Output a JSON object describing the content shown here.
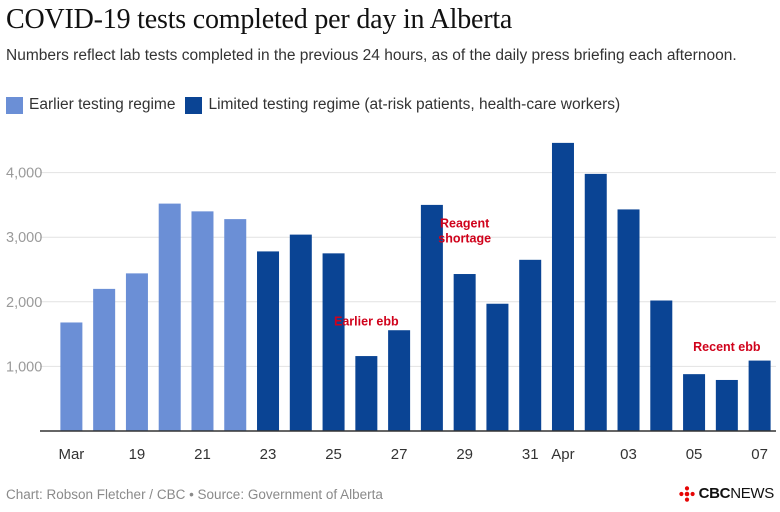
{
  "title": "COVID-19 tests completed per day in Alberta",
  "subtitle": "Numbers reflect lab tests completed in the previous 24 hours, as of the daily press briefing each afternoon.",
  "legend": [
    {
      "label": "Earlier testing regime",
      "color": "#6b8fd6"
    },
    {
      "label": "Limited testing regime (at-risk patients, health-care workers)",
      "color": "#0a4494"
    }
  ],
  "footer": "Chart: Robson Fletcher / CBC • Source: Government of Alberta",
  "logo": {
    "cbc": "CBC",
    "news": "NEWS"
  },
  "colors": {
    "earlier": "#6b8fd6",
    "limited": "#0a4494",
    "annotation": "#d0021b",
    "grid": "#e2e2e2",
    "axis": "#333333",
    "tick": "#9a9a9a"
  },
  "chart_data": {
    "type": "bar",
    "categories": [
      "Mar 17",
      "Mar 18",
      "Mar 19",
      "Mar 20",
      "Mar 21",
      "Mar 22",
      "Mar 23",
      "Mar 24",
      "Mar 25",
      "Mar 26",
      "Mar 27",
      "Mar 28",
      "Mar 29",
      "Mar 30",
      "Mar 31",
      "Apr 1",
      "Apr 2",
      "Apr 3",
      "Apr 4",
      "Apr 5",
      "Apr 6",
      "Apr 7"
    ],
    "values": [
      1680,
      2200,
      2440,
      3520,
      3400,
      3280,
      2780,
      3040,
      2750,
      1160,
      1560,
      3500,
      2430,
      1970,
      2650,
      4460,
      3980,
      3430,
      2020,
      880,
      790,
      1090
    ],
    "regime": [
      "earlier",
      "earlier",
      "earlier",
      "earlier",
      "earlier",
      "earlier",
      "limited",
      "limited",
      "limited",
      "limited",
      "limited",
      "limited",
      "limited",
      "limited",
      "limited",
      "limited",
      "limited",
      "limited",
      "limited",
      "limited",
      "limited",
      "limited"
    ],
    "x_tick_labels": [
      {
        "index": 0,
        "label": "Mar"
      },
      {
        "index": 2,
        "label": "19"
      },
      {
        "index": 4,
        "label": "21"
      },
      {
        "index": 6,
        "label": "23"
      },
      {
        "index": 8,
        "label": "25"
      },
      {
        "index": 10,
        "label": "27"
      },
      {
        "index": 12,
        "label": "29"
      },
      {
        "index": 14,
        "label": "31"
      },
      {
        "index": 15,
        "label": "Apr"
      },
      {
        "index": 17,
        "label": "03"
      },
      {
        "index": 19,
        "label": "05"
      },
      {
        "index": 21,
        "label": "07"
      }
    ],
    "y_ticks": [
      1000,
      2000,
      3000,
      4000
    ],
    "y_tick_labels": [
      "1,000",
      "2,000",
      "3,000",
      "4,000"
    ],
    "ylim": [
      0,
      4700
    ],
    "grid": true,
    "annotations": [
      {
        "lines": [
          "Earlier ebb"
        ],
        "index": 9,
        "value": 1630
      },
      {
        "lines": [
          "Reagent",
          "shortage"
        ],
        "index": 12,
        "value": 2920
      },
      {
        "lines": [
          "Recent ebb"
        ],
        "index": 20,
        "value": 1240
      }
    ]
  }
}
